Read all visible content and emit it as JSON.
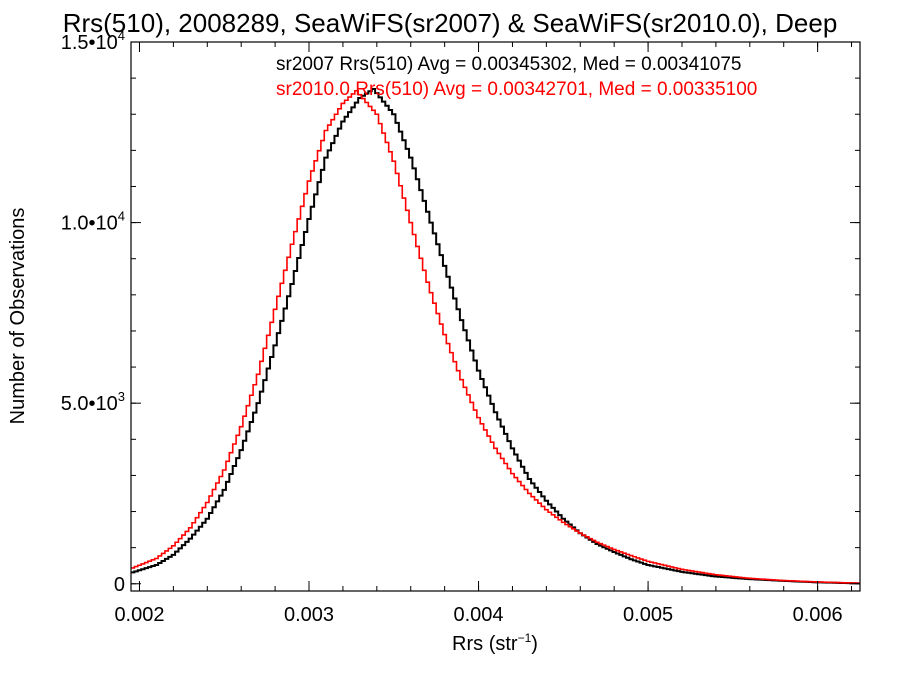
{
  "chart_data": {
    "type": "line",
    "title": "Rrs(510), 2008289, SeaWiFS(sr2007) & SeaWiFS(sr2010.0), Deep",
    "xlabel_main": "Rrs (str",
    "xlabel_sup": "−1",
    "xlabel_end": ")",
    "ylabel": "Number of Observations",
    "xlim": [
      0.00195,
      0.00625
    ],
    "ylim": [
      -200,
      15000
    ],
    "x_ticks": [
      {
        "value": 0.002,
        "label": "0.002"
      },
      {
        "value": 0.003,
        "label": "0.003"
      },
      {
        "value": 0.004,
        "label": "0.004"
      },
      {
        "value": 0.005,
        "label": "0.005"
      },
      {
        "value": 0.006,
        "label": "0.006"
      }
    ],
    "y_ticks": [
      {
        "value": 0,
        "mant": "0",
        "exp": ""
      },
      {
        "value": 5000,
        "mant": "5.0•10",
        "exp": "3"
      },
      {
        "value": 10000,
        "mant": "1.0•10",
        "exp": "4"
      },
      {
        "value": 15000,
        "mant": "1.5•10",
        "exp": "4"
      }
    ],
    "annotations": [
      "sr2007 Rrs(510) Avg = 0.00345302, Med = 0.00341075",
      "sr2010.0 Rrs(510) Avg = 0.00342701, Med = 0.00335100"
    ],
    "series": [
      {
        "name": "sr2007",
        "color": "#000000",
        "points": [
          [
            0.00195,
            300
          ],
          [
            0.0021,
            520
          ],
          [
            0.0022,
            800
          ],
          [
            0.0023,
            1250
          ],
          [
            0.0024,
            1800
          ],
          [
            0.0025,
            2600
          ],
          [
            0.0026,
            3700
          ],
          [
            0.0027,
            5000
          ],
          [
            0.0028,
            6600
          ],
          [
            0.0029,
            8300
          ],
          [
            0.003,
            10100
          ],
          [
            0.0031,
            11800
          ],
          [
            0.0032,
            12800
          ],
          [
            0.0033,
            13450
          ],
          [
            0.00338,
            13700
          ],
          [
            0.0035,
            13000
          ],
          [
            0.0036,
            11800
          ],
          [
            0.0037,
            10300
          ],
          [
            0.0038,
            8800
          ],
          [
            0.0039,
            7300
          ],
          [
            0.004,
            5900
          ],
          [
            0.0041,
            4750
          ],
          [
            0.0042,
            3750
          ],
          [
            0.0043,
            2900
          ],
          [
            0.0044,
            2300
          ],
          [
            0.0045,
            1800
          ],
          [
            0.0046,
            1400
          ],
          [
            0.0047,
            1100
          ],
          [
            0.0048,
            880
          ],
          [
            0.0049,
            680
          ],
          [
            0.005,
            520
          ],
          [
            0.0052,
            330
          ],
          [
            0.0054,
            200
          ],
          [
            0.0056,
            130
          ],
          [
            0.0058,
            80
          ],
          [
            0.006,
            40
          ],
          [
            0.00625,
            10
          ]
        ]
      },
      {
        "name": "sr2010.0",
        "color": "#ff0000",
        "points": [
          [
            0.00195,
            420
          ],
          [
            0.0021,
            700
          ],
          [
            0.0022,
            1050
          ],
          [
            0.0023,
            1550
          ],
          [
            0.0024,
            2250
          ],
          [
            0.0025,
            3150
          ],
          [
            0.0026,
            4350
          ],
          [
            0.0027,
            5800
          ],
          [
            0.0028,
            7600
          ],
          [
            0.0029,
            9400
          ],
          [
            0.003,
            11150
          ],
          [
            0.0031,
            12550
          ],
          [
            0.0032,
            13300
          ],
          [
            0.00328,
            13650
          ],
          [
            0.0034,
            13000
          ],
          [
            0.0035,
            11700
          ],
          [
            0.0036,
            10000
          ],
          [
            0.0037,
            8350
          ],
          [
            0.0038,
            6900
          ],
          [
            0.0039,
            5650
          ],
          [
            0.004,
            4600
          ],
          [
            0.0041,
            3750
          ],
          [
            0.0042,
            3050
          ],
          [
            0.0043,
            2500
          ],
          [
            0.0044,
            2050
          ],
          [
            0.0045,
            1700
          ],
          [
            0.0046,
            1400
          ],
          [
            0.0047,
            1150
          ],
          [
            0.0048,
            950
          ],
          [
            0.0049,
            780
          ],
          [
            0.005,
            620
          ],
          [
            0.0052,
            400
          ],
          [
            0.0054,
            250
          ],
          [
            0.0056,
            150
          ],
          [
            0.0058,
            90
          ],
          [
            0.006,
            50
          ],
          [
            0.00625,
            15
          ]
        ]
      }
    ]
  }
}
